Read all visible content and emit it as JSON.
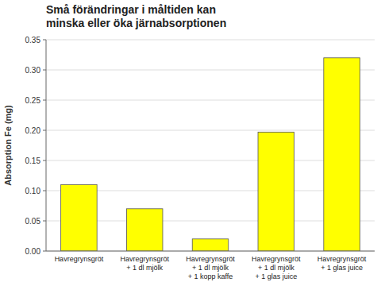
{
  "chart_data": {
    "type": "bar",
    "title": "Små förändringar i måltiden kan\nminska eller öka järnabsorptionen",
    "y_label": "Absorption Fe (mg)",
    "categories": [
      "Havregrynsgröt",
      "Havregrynsgröt\n+ 1 dl mjölk",
      "Havregrynsgröt\n+ 1 dl mjölk\n+ 1 kopp kaffe",
      "Havregrynsgröt\n+ 1 dl mjölk\n+ 1 glas juice",
      "Havregrynsgröt\n+ 1 glas juice"
    ],
    "values": [
      0.11,
      0.07,
      0.02,
      0.197,
      0.32
    ],
    "color": "#ffff00",
    "ylim": [
      0.0,
      0.35
    ],
    "yticks": [
      {
        "value": 0.0,
        "label": "0.00"
      },
      0.05,
      {
        "value": 0.1,
        "label": "0.10"
      },
      0.15,
      {
        "value": 0.2,
        "label": "0.20"
      },
      0.25,
      {
        "value": 0.3,
        "label": "0.30"
      },
      0.35
    ],
    "grid": true
  }
}
